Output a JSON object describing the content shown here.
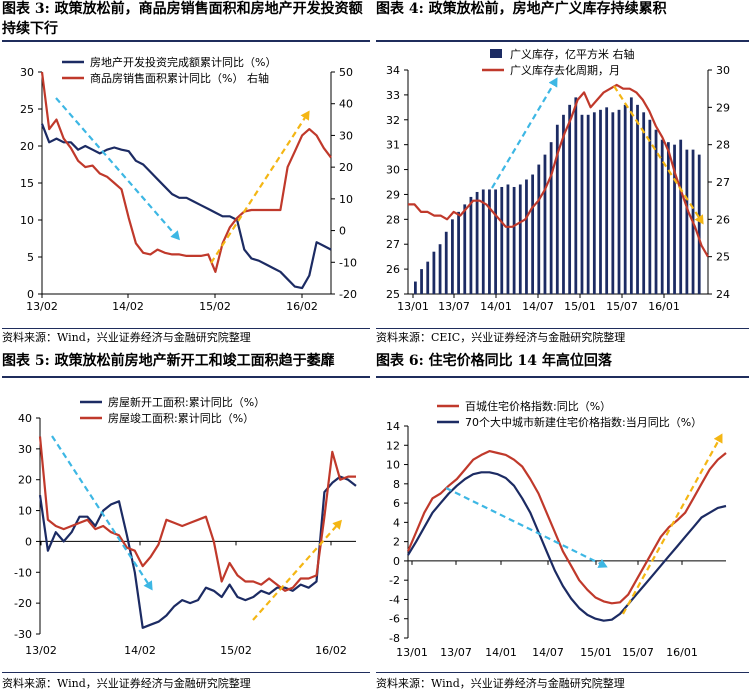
{
  "titles": {
    "p3": "图表 3: 政策放松前，商品房销售面积和房地产开发投资额持续下行",
    "p4": "图表 4: 政策放松前，房地产广义库存持续累积",
    "p5": "图表 5: 政策放松前房地产新开工和竣工面积趋于萎靡",
    "p6": "图表 6: 住宅价格同比 14 年高位回落"
  },
  "sources": {
    "p3": "资料来源：Wind，兴业证券经济与金融研究院整理",
    "p4": "资料来源：CEIC，兴业证券经济与金融研究院整理",
    "p5": "资料来源：Wind，兴业证券经济与金融研究院整理",
    "p6": "资料来源：Wind，兴业证券经济与金融研究院整理"
  },
  "colors": {
    "navy": "#1c2b63",
    "red": "#c0392b",
    "cyan": "#3db7e4",
    "gold": "#f4b614",
    "rule": "#1f2d5c"
  },
  "chart_data": [
    {
      "id": "p3",
      "type": "line",
      "xticks": [
        "13/02",
        "14/02",
        "15/02",
        "16/02"
      ],
      "ylim": [
        0,
        30
      ],
      "y2lim": [
        -20,
        50
      ],
      "yticks": [
        0,
        5,
        10,
        15,
        20,
        25,
        30
      ],
      "y2ticks": [
        -20,
        -10,
        0,
        10,
        20,
        30,
        40,
        50
      ],
      "series": [
        {
          "name": "房地产开发投资完成额累计同比（%）",
          "color": "navy",
          "axis": "left",
          "values": [
            23,
            20.5,
            21,
            20.5,
            20.5,
            19.5,
            20,
            19.5,
            19,
            19.5,
            19.8,
            19.5,
            19.3,
            18,
            17.5,
            16.5,
            15.5,
            14.5,
            13.5,
            13,
            13,
            12.5,
            12,
            11.5,
            11,
            10.5,
            10.5,
            10,
            6,
            4.8,
            4.5,
            4,
            3.5,
            3,
            2,
            1,
            0.8,
            2.5,
            7,
            6.5,
            6
          ]
        },
        {
          "name": "商品房销售面积累计同比（%）  右轴",
          "color": "red",
          "axis": "right",
          "values": [
            50,
            32,
            35,
            29,
            26,
            22,
            20,
            20.5,
            18,
            17,
            15,
            13,
            4,
            -4,
            -7,
            -7.5,
            -6,
            -7,
            -7.5,
            -7.5,
            -8,
            -8,
            -8,
            -7.5,
            -13,
            -4,
            1,
            4,
            6,
            6.5,
            6.5,
            6.5,
            6.5,
            6.5,
            20,
            25,
            30,
            32,
            30,
            26,
            23
          ]
        }
      ],
      "arrows": [
        "down",
        "up"
      ]
    },
    {
      "id": "p4",
      "type": "bar+line",
      "xticks": [
        "13/01",
        "13/07",
        "14/01",
        "14/07",
        "15/01",
        "15/07",
        "16/01"
      ],
      "ylim": [
        25,
        34
      ],
      "y2lim": [
        24,
        30
      ],
      "yticks": [
        25,
        26,
        27,
        28,
        29,
        30,
        31,
        32,
        33,
        34
      ],
      "y2ticks": [
        24,
        25,
        26,
        27,
        28,
        29,
        30
      ],
      "series": [
        {
          "name": "广义库存，亿平方米  右轴",
          "color": "navy",
          "axis": "left",
          "values": [
            25.5,
            26,
            26.3,
            26.7,
            27,
            27.5,
            28,
            28.3,
            28.6,
            28.9,
            29.1,
            29.2,
            29.2,
            29.2,
            29.3,
            29.4,
            29.3,
            29.4,
            29.6,
            29.8,
            30.2,
            30.6,
            31.1,
            31.8,
            32.2,
            32.6,
            32.9,
            32.2,
            32.2,
            32.3,
            32.4,
            32.5,
            32.3,
            32.4,
            32.6,
            32.9,
            32.6,
            32.3,
            32.0,
            31.6,
            31.2,
            31.1,
            31.0,
            31.2,
            30.8,
            30.8,
            30.6
          ]
        },
        {
          "name": "广义库存去化周期，月",
          "color": "red",
          "axis": "right",
          "values": [
            26.4,
            26.4,
            26.2,
            26.2,
            26.1,
            26.1,
            26.0,
            26.2,
            26.1,
            26.3,
            26.5,
            26.5,
            26.4,
            26.2,
            26.0,
            25.8,
            25.8,
            25.9,
            26.0,
            26.3,
            26.5,
            26.8,
            27.2,
            27.8,
            28.3,
            28.7,
            29.2,
            29.4,
            29.0,
            29.2,
            29.4,
            29.5,
            29.6,
            29.5,
            29.5,
            29.4,
            29.2,
            28.9,
            28.5,
            28.2,
            27.8,
            27.2,
            26.7,
            26.2,
            25.8,
            25.3,
            25.0
          ]
        }
      ],
      "arrows": [
        "up",
        "down"
      ]
    },
    {
      "id": "p5",
      "type": "line",
      "xticks": [
        "13/02",
        "14/02",
        "15/02",
        "16/02"
      ],
      "ylim": [
        -30,
        40
      ],
      "yticks": [
        -30,
        -20,
        -10,
        0,
        10,
        20,
        30,
        40
      ],
      "series": [
        {
          "name": "房屋新开工面积:累计同比（%）",
          "color": "navy",
          "values": [
            15,
            -3,
            3,
            0,
            3,
            8,
            8,
            5,
            10,
            12,
            13,
            2,
            -10,
            -28,
            -27,
            -26,
            -24,
            -21,
            -19,
            -20,
            -19,
            -15,
            -16,
            -18,
            -14,
            -18,
            -19,
            -18,
            -16,
            -17,
            -15,
            -15,
            -16,
            -14,
            -15,
            -13,
            16,
            19,
            21,
            20,
            18
          ]
        },
        {
          "name": "房屋竣工面积:累计同比（%）",
          "color": "red",
          "values": [
            34,
            7,
            5,
            4,
            5,
            6,
            7,
            4,
            5,
            3,
            2,
            -2,
            -3,
            -8,
            -5,
            -1,
            7,
            6,
            5,
            6,
            7,
            8,
            0,
            -13,
            -7,
            -11,
            -13,
            -13,
            -14,
            -12,
            -14,
            -16,
            -15,
            -12,
            -12,
            -11,
            8,
            29,
            20,
            21,
            21
          ]
        }
      ],
      "arrows": [
        "down",
        "up"
      ]
    },
    {
      "id": "p6",
      "type": "line",
      "xticks": [
        "13/01",
        "13/07",
        "14/01",
        "14/07",
        "15/01",
        "15/07",
        "16/01"
      ],
      "ylim": [
        -8,
        14
      ],
      "yticks": [
        -8,
        -6,
        -4,
        -2,
        0,
        2,
        4,
        6,
        8,
        10,
        12,
        14
      ],
      "series": [
        {
          "name": "百城住宅价格指数:同比（%）",
          "color": "red",
          "values": [
            1,
            3,
            5,
            6.5,
            7,
            7.8,
            8.5,
            9.5,
            10.5,
            11,
            11.4,
            11.2,
            11,
            10.5,
            9.8,
            8.5,
            7,
            5,
            3,
            1,
            -0.5,
            -2,
            -3,
            -3.8,
            -4.2,
            -4.4,
            -4.3,
            -3.5,
            -2,
            -0.5,
            1,
            2.5,
            3.5,
            4.2,
            5,
            6.5,
            8,
            9.5,
            10.5,
            11.2
          ]
        },
        {
          "name": "70个大中城市新建住宅价格指数:当月同比（%）",
          "color": "navy",
          "values": [
            0.6,
            2,
            3.5,
            5,
            6,
            7,
            7.8,
            8.5,
            9,
            9.2,
            9.2,
            9,
            8.6,
            7.8,
            6.5,
            5,
            3,
            1,
            -1,
            -2.6,
            -3.9,
            -4.9,
            -5.6,
            -6,
            -6.2,
            -6.1,
            -5.5,
            -4.5,
            -3.5,
            -2.5,
            -1.5,
            -0.5,
            0.5,
            1.5,
            2.5,
            3.5,
            4.5,
            5,
            5.5,
            5.7
          ]
        }
      ],
      "arrows": [
        "down",
        "up"
      ]
    }
  ]
}
